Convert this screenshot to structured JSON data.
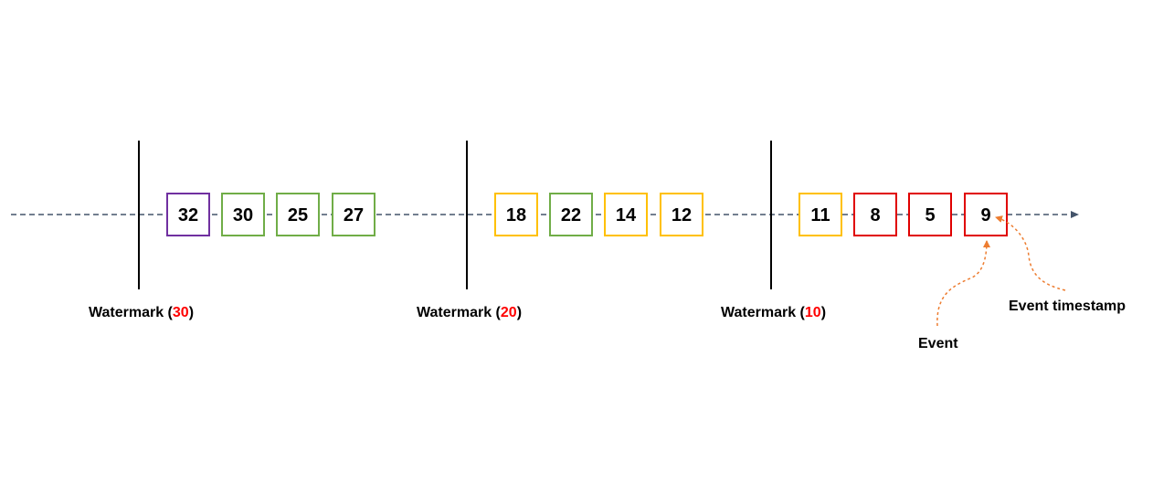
{
  "colors": {
    "timeline": "#44546a",
    "watermark_line": "#000000",
    "purple": "#7030a0",
    "green": "#70ad47",
    "yellow": "#ffc000",
    "red": "#e00000",
    "annotation": "#ed7d31",
    "watermark_value": "#ff0000"
  },
  "events": [
    {
      "value": "32",
      "color": "purple"
    },
    {
      "value": "30",
      "color": "green"
    },
    {
      "value": "25",
      "color": "green"
    },
    {
      "value": "27",
      "color": "green"
    },
    {
      "value": "18",
      "color": "yellow"
    },
    {
      "value": "22",
      "color": "green"
    },
    {
      "value": "14",
      "color": "yellow"
    },
    {
      "value": "12",
      "color": "yellow"
    },
    {
      "value": "11",
      "color": "yellow"
    },
    {
      "value": "8",
      "color": "red"
    },
    {
      "value": "5",
      "color": "red"
    },
    {
      "value": "9",
      "color": "red"
    }
  ],
  "watermarks": [
    {
      "prefix": "Watermark (",
      "value": "30",
      "suffix": ")"
    },
    {
      "prefix": "Watermark (",
      "value": "20",
      "suffix": ")"
    },
    {
      "prefix": "Watermark (",
      "value": "10",
      "suffix": ")"
    }
  ],
  "annotations": {
    "event": "Event",
    "event_timestamp": "Event timestamp"
  }
}
